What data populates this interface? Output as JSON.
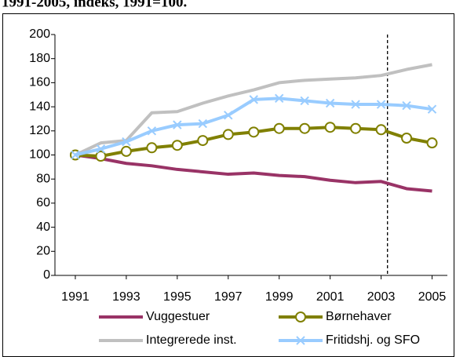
{
  "title_fragment": "1991-2005, indeks, 1991=100.",
  "chart_data": {
    "type": "line",
    "x": [
      1991,
      1992,
      1993,
      1994,
      1995,
      1996,
      1997,
      1998,
      1999,
      2000,
      2001,
      2002,
      2003,
      2004,
      2005
    ],
    "xlim": [
      1990.2,
      2005.6
    ],
    "xticks": [
      1991,
      1993,
      1995,
      1997,
      1999,
      2001,
      2003,
      2005
    ],
    "ylim": [
      0,
      200
    ],
    "yticks": [
      0,
      20,
      40,
      60,
      80,
      100,
      120,
      140,
      160,
      180,
      200
    ],
    "vline": 2003.25,
    "series": [
      {
        "name": "Vuggestuer",
        "color": "#993366",
        "marker": "none",
        "values": [
          100,
          97,
          93,
          91,
          88,
          86,
          84,
          85,
          83,
          82,
          79,
          77,
          78,
          72,
          70
        ]
      },
      {
        "name": "Børnehaver",
        "color": "#808000",
        "marker": "circle",
        "values": [
          100,
          99,
          103,
          106,
          108,
          112,
          117,
          119,
          122,
          122,
          123,
          122,
          121,
          114,
          110
        ]
      },
      {
        "name": "Integrerede inst.",
        "color": "#c0c0c0",
        "marker": "none",
        "values": [
          100,
          110,
          112,
          135,
          136,
          143,
          149,
          154,
          160,
          162,
          163,
          164,
          166,
          171,
          175
        ]
      },
      {
        "name": "Fritidshj. og SFO",
        "color": "#99ccff",
        "marker": "x",
        "values": [
          100,
          105,
          111,
          120,
          125,
          126,
          133,
          146,
          147,
          145,
          143,
          142,
          142,
          141,
          138
        ]
      }
    ]
  }
}
